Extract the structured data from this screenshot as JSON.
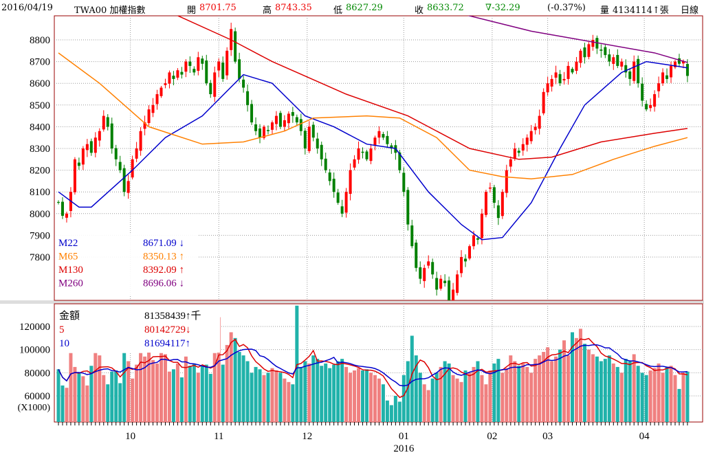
{
  "header": {
    "date": "2016/04/19",
    "symbol": "TWA00 加權指數",
    "open_label": "開",
    "open": "8701.75",
    "high_label": "高",
    "high": "8743.35",
    "low_label": "低",
    "low": "8627.29",
    "close_label": "收",
    "close": "8633.72",
    "change": "∇-32.29",
    "change_pct": "(-0.37%)",
    "volume_label": "量",
    "volume": "4134114↑張",
    "period": "日線"
  },
  "colors": {
    "up": "#ff0000",
    "down": "#008000",
    "vol_up": "#f08080",
    "vol_down": "#20b2aa",
    "m22": "#0000cc",
    "m65": "#ff8000",
    "m130": "#dd0000",
    "m260": "#800080",
    "border": "#990000"
  },
  "chart_data": [
    {
      "type": "candlestick",
      "title": "TWA00 加權指數 日線",
      "ylim": [
        7600,
        8950
      ],
      "yticks": [
        7800,
        7900,
        8000,
        8100,
        8200,
        8300,
        8400,
        8500,
        8600,
        8700,
        8800
      ],
      "month_ticks": [
        {
          "label": "10",
          "index": 17.5
        },
        {
          "label": "11",
          "index": 39
        },
        {
          "label": "12",
          "index": 60.5
        },
        {
          "label": "01",
          "index": 84
        },
        {
          "label": "02",
          "index": 105.5
        },
        {
          "label": "03",
          "index": 119
        },
        {
          "label": "04",
          "index": 142.5
        }
      ],
      "year_label": "2016",
      "close": [
        8050,
        7990,
        8000,
        8100,
        8250,
        8220,
        8300,
        8320,
        8280,
        8350,
        8380,
        8450,
        8400,
        8300,
        8250,
        8200,
        8100,
        8150,
        8250,
        8300,
        8380,
        8420,
        8480,
        8500,
        8550,
        8580,
        8600,
        8650,
        8620,
        8660,
        8640,
        8700,
        8680,
        8650,
        8720,
        8690,
        8600,
        8550,
        8650,
        8700,
        8620,
        8750,
        8850,
        8700,
        8620,
        8580,
        8500,
        8420,
        8380,
        8350,
        8400,
        8380,
        8420,
        8450,
        8400,
        8430,
        8460,
        8450,
        8420,
        8380,
        8300,
        8400,
        8350,
        8300,
        8250,
        8200,
        8150,
        8100,
        8050,
        8000,
        8100,
        8200,
        8250,
        8300,
        8280,
        8250,
        8300,
        8350,
        8380,
        8350,
        8320,
        8300,
        8280,
        8200,
        8100,
        7950,
        7850,
        7750,
        7700,
        7750,
        7780,
        7720,
        7650,
        7700,
        7680,
        7600,
        7650,
        7720,
        7800,
        7780,
        7850,
        7900,
        7880,
        8000,
        8100,
        8120,
        8050,
        7980,
        8100,
        8200,
        8250,
        8300,
        8280,
        8320,
        8350,
        8380,
        8400,
        8450,
        8560,
        8600,
        8620,
        8650,
        8600,
        8620,
        8680,
        8650,
        8700,
        8750,
        8720,
        8780,
        8800,
        8760,
        8750,
        8730,
        8700,
        8720,
        8680,
        8700,
        8650,
        8620,
        8700,
        8600,
        8520,
        8480,
        8500,
        8550,
        8600,
        8650,
        8620,
        8680,
        8700,
        8690,
        8701,
        8634
      ],
      "moving_averages": [
        {
          "name": "M22",
          "value": "8671.09 ↓",
          "color_key": "m22",
          "points": [
            [
              0,
              8100
            ],
            [
              5,
              8030
            ],
            [
              8,
              8030
            ],
            [
              18,
              8200
            ],
            [
              26,
              8350
            ],
            [
              35,
              8450
            ],
            [
              45,
              8640
            ],
            [
              52,
              8600
            ],
            [
              60,
              8450
            ],
            [
              67,
              8400
            ],
            [
              75,
              8320
            ],
            [
              82,
              8300
            ],
            [
              90,
              8100
            ],
            [
              98,
              7950
            ],
            [
              103,
              7880
            ],
            [
              108,
              7890
            ],
            [
              115,
              8050
            ],
            [
              122,
              8300
            ],
            [
              128,
              8500
            ],
            [
              137,
              8650
            ],
            [
              143,
              8700
            ],
            [
              150,
              8680
            ],
            [
              153,
              8671
            ]
          ]
        },
        {
          "name": "M65",
          "value": "8350.13 ↑",
          "color_key": "m65",
          "points": [
            [
              0,
              8740
            ],
            [
              10,
              8600
            ],
            [
              22,
              8400
            ],
            [
              35,
              8320
            ],
            [
              45,
              8330
            ],
            [
              55,
              8380
            ],
            [
              62,
              8440
            ],
            [
              75,
              8450
            ],
            [
              83,
              8440
            ],
            [
              92,
              8350
            ],
            [
              100,
              8200
            ],
            [
              108,
              8170
            ],
            [
              115,
              8160
            ],
            [
              125,
              8180
            ],
            [
              135,
              8250
            ],
            [
              145,
              8310
            ],
            [
              153,
              8350
            ]
          ]
        },
        {
          "name": "M130",
          "value": "8392.09 ↑",
          "color_key": "m130",
          "points": [
            [
              28,
              8920
            ],
            [
              42,
              8800
            ],
            [
              52,
              8700
            ],
            [
              70,
              8550
            ],
            [
              85,
              8450
            ],
            [
              100,
              8300
            ],
            [
              112,
              8250
            ],
            [
              120,
              8260
            ],
            [
              132,
              8330
            ],
            [
              145,
              8370
            ],
            [
              153,
              8392
            ]
          ]
        },
        {
          "name": "M260",
          "value": "8696.06 ↓",
          "color_key": "m260",
          "points": [
            [
              98,
              8920
            ],
            [
              115,
              8840
            ],
            [
              130,
              8790
            ],
            [
              145,
              8740
            ],
            [
              153,
              8696
            ]
          ]
        }
      ]
    },
    {
      "type": "bar",
      "title": "金額",
      "unit_label": "(X1000)",
      "ylim": [
        38000,
        135000
      ],
      "yticks": [
        60000,
        80000,
        100000,
        120000
      ],
      "legend": [
        {
          "name": "金額",
          "value": "81358439↑千"
        },
        {
          "name": "5",
          "value": "80142729↓"
        },
        {
          "name": "10",
          "value": "81694117↑"
        }
      ],
      "values": [
        83000,
        69000,
        67000,
        97000,
        85000,
        80000,
        77000,
        69000,
        86000,
        97000,
        95000,
        78000,
        70000,
        81000,
        82000,
        71000,
        97000,
        90000,
        75000,
        87000,
        97000,
        94000,
        100000,
        91000,
        88000,
        97000,
        96000,
        81000,
        83000,
        88000,
        76000,
        94000,
        86000,
        88000,
        80000,
        86000,
        87000,
        79000,
        97000,
        128000,
        87000,
        104000,
        115000,
        110000,
        98000,
        95000,
        90000,
        80000,
        85000,
        83000,
        78000,
        80000,
        84000,
        82000,
        80000,
        75000,
        72000,
        70000,
        138000,
        85000,
        90000,
        88000,
        95000,
        92000,
        86000,
        88000,
        84000,
        87000,
        90000,
        92000,
        85000,
        80000,
        82000,
        84000,
        82000,
        83000,
        80000,
        78000,
        75000,
        70000,
        56000,
        52000,
        60000,
        55000,
        78000,
        90000,
        112000,
        95000,
        80000,
        70000,
        65000,
        75000,
        80000,
        85000,
        90000,
        88000,
        78000,
        75000,
        72000,
        82000,
        80000,
        85000,
        90000,
        78000,
        70000,
        82000,
        88000,
        92000,
        80000,
        84000,
        95000,
        90000,
        86000,
        88000,
        85000,
        80000,
        92000,
        95000,
        98000,
        102000,
        90000,
        94000,
        100000,
        108000,
        95000,
        115000,
        110000,
        118000,
        105000,
        100000,
        96000,
        94000,
        90000,
        92000,
        95000,
        88000,
        85000,
        80000,
        92000,
        90000,
        96000,
        86000,
        80000,
        78000,
        82000,
        84000,
        88000,
        80000,
        85000,
        86000,
        78000,
        66000,
        80000,
        81000
      ]
    }
  ]
}
